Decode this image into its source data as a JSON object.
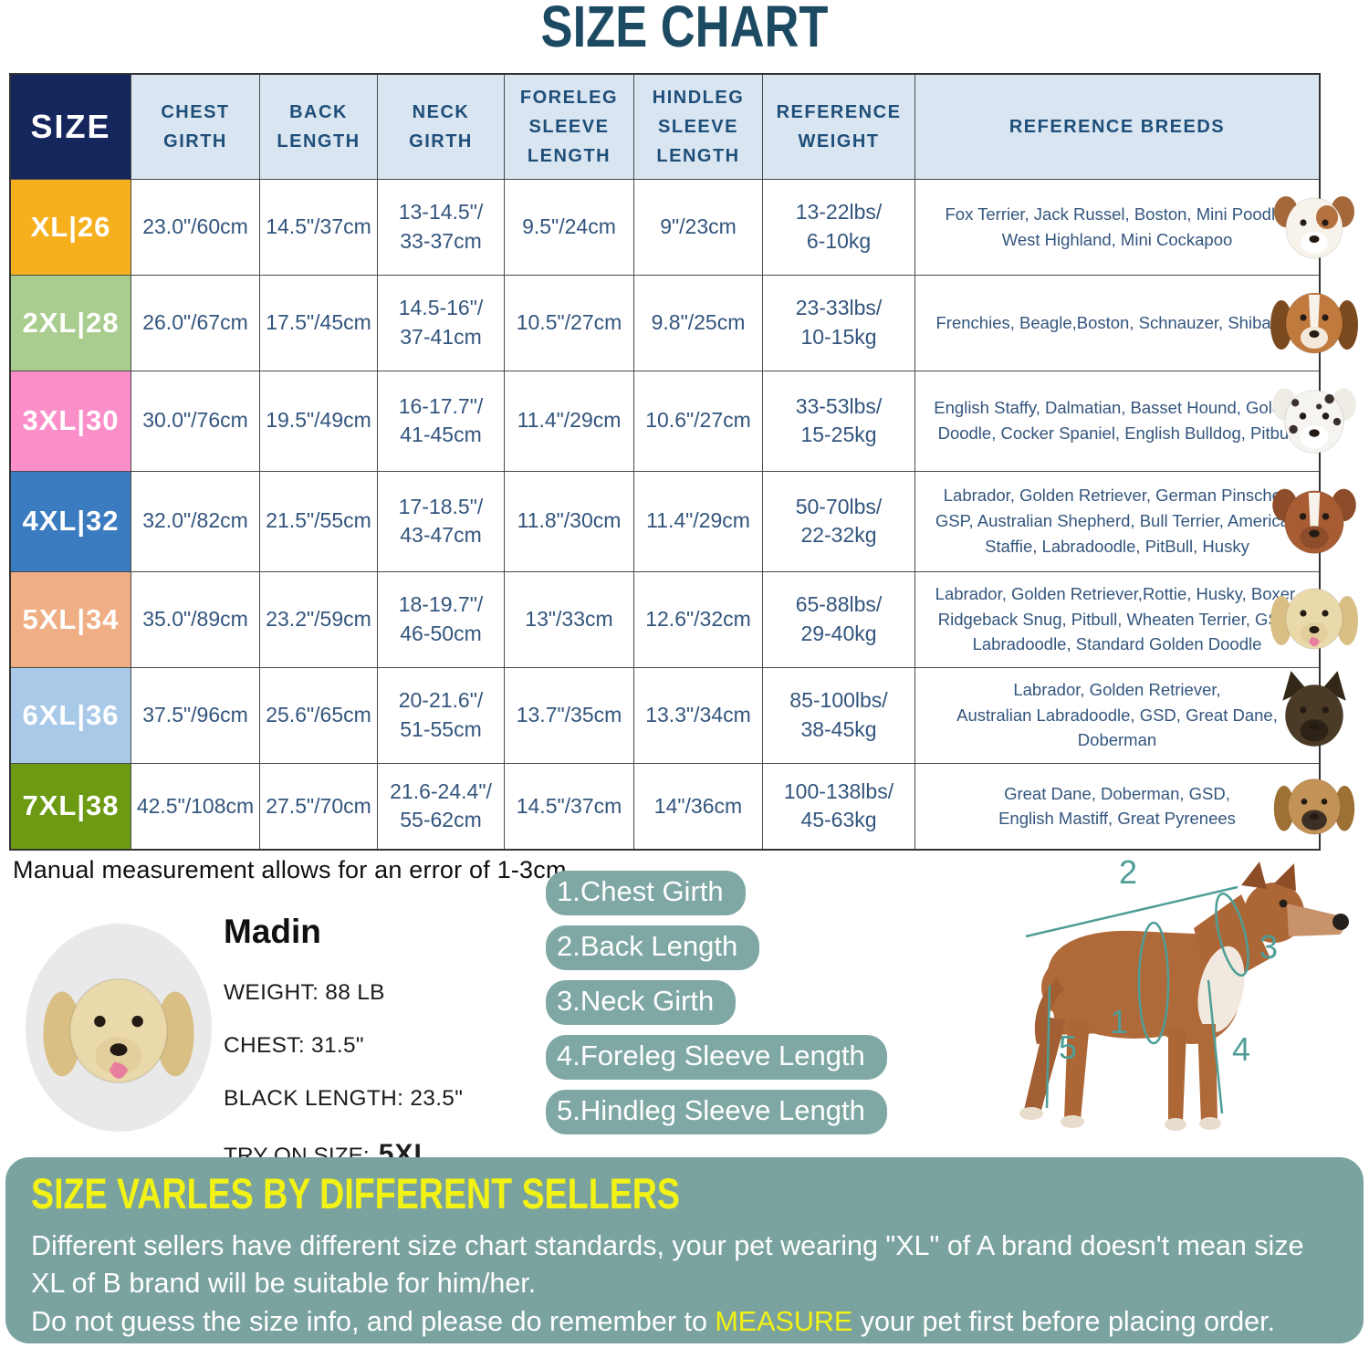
{
  "title": "SIZE CHART",
  "note": "Manual measurement allows for an error of 1-3cm",
  "table": {
    "headers": {
      "size": "SIZE",
      "chest": "CHEST GIRTH",
      "back": "BACK LENGTH",
      "neck": "NECK GIRTH",
      "foreleg": "FORELEG SLEEVE LENGTH",
      "hindleg": "HINDLEG SLEEVE LENGTH",
      "weight": "REFERENCE WEIGHT",
      "breeds": "REFERENCE BREEDS"
    },
    "rows": [
      {
        "size": "XL|26",
        "color": "#F6B01E",
        "chest": "23.0\"/60cm",
        "back": "14.5\"/37cm",
        "neck": "13-14.5\"/\n33-37cm",
        "foreleg": "9.5\"/24cm",
        "hindleg": "9\"/23cm",
        "weight": "13-22lbs/\n6-10kg",
        "breeds": "Fox Terrier, Jack Russel, Boston, Mini Poodle, West Highland, Mini Cockapoo",
        "dog": {
          "name": "jack-russell",
          "head": "#f7f2ea",
          "ear": "#a5683a",
          "earStyle": "short",
          "muzzle": "#ffffff",
          "patch": "#b5713f"
        }
      },
      {
        "size": "2XL|28",
        "color": "#A9CD8E",
        "chest": "26.0\"/67cm",
        "back": "17.5\"/45cm",
        "neck": "14.5-16\"/\n37-41cm",
        "foreleg": "10.5\"/27cm",
        "hindleg": "9.8\"/25cm",
        "weight": "23-33lbs/\n10-15kg",
        "breeds": "Frenchies, Beagle,Boston, Schnauzer, Shiba inu",
        "dog": {
          "name": "beagle",
          "head": "#c07a3e",
          "ear": "#7b4a1e",
          "earStyle": "long",
          "muzzle": "#f3e9da",
          "blaze": "#f7f2ea"
        }
      },
      {
        "size": "3XL|30",
        "color": "#FB8FC9",
        "chest": "30.0\"/76cm",
        "back": "19.5\"/49cm",
        "neck": "16-17.7\"/\n41-45cm",
        "foreleg": "11.4\"/29cm",
        "hindleg": "10.6\"/27cm",
        "weight": "33-53lbs/\n15-25kg",
        "breeds": "English Staffy, Dalmatian, Basset Hound, Golden Doodle, Cocker Spaniel, English Bulldog, Pitbull",
        "dog": {
          "name": "dalmatian",
          "head": "#f5f4f0",
          "ear": "#efece6",
          "earStyle": "short",
          "muzzle": "#ffffff",
          "spots": [
            [
              30,
              32,
              4
            ],
            [
              66,
              28,
              5
            ],
            [
              74,
              52,
              4
            ],
            [
              28,
              60,
              4.5
            ],
            [
              55,
              36,
              3
            ],
            [
              40,
              72,
              3
            ]
          ],
          "spotColor": "#3b2f2b"
        }
      },
      {
        "size": "4XL|32",
        "color": "#3B7BC0",
        "chest": "32.0\"/82cm",
        "back": "21.5\"/55cm",
        "neck": "17-18.5\"/\n43-47cm",
        "foreleg": "11.8\"/30cm",
        "hindleg": "11.4\"/29cm",
        "weight": "50-70lbs/\n22-32kg",
        "breeds": "Labrador, Golden Retriever, German Pinscher, GSP, Australian Shepherd, Bull Terrier, American Staffie, Labradoodle, PitBull, Husky",
        "dog": {
          "name": "amstaff",
          "head": "#a75c33",
          "ear": "#8d4d2a",
          "earStyle": "short",
          "muzzle": "#8d4d2a",
          "blaze": "#f7f2ea"
        }
      },
      {
        "size": "5XL|34",
        "color": "#F0AE84",
        "chest": "35.0\"/89cm",
        "back": "23.2\"/59cm",
        "neck": "18-19.7\"/\n46-50cm",
        "foreleg": "13\"/33cm",
        "hindleg": "12.6\"/32cm",
        "weight": "65-88lbs/\n29-40kg",
        "breeds": "Labrador, Golden Retriever,Rottie, Husky, Boxer, Ridgeback Snug, Pitbull, Wheaten Terrier, GSD, Labradoodle,  Standard Golden Doodle",
        "dog": {
          "name": "labrador",
          "head": "#ead9ab",
          "ear": "#d9bf84",
          "earStyle": "long",
          "muzzle": "#e2cf9c",
          "tongue": true
        }
      },
      {
        "size": "6XL|36",
        "color": "#A9C9E9",
        "chest": "37.5\"/96cm",
        "back": "25.6\"/65cm",
        "neck": "20-21.6\"/\n51-55cm",
        "foreleg": "13.7\"/35cm",
        "hindleg": "13.3\"/34cm",
        "weight": "85-100lbs/\n38-45kg",
        "breeds": "Labrador, Golden Retriever,\nAustralian Labradoodle, GSD, Great Dane,\nDoberman",
        "dog": {
          "name": "german-shepherd",
          "head": "#4b3a26",
          "ear": "#332817",
          "earStyle": "pointed",
          "muzzle": "#2c2216"
        }
      },
      {
        "size": "7XL|38",
        "color": "#6C9B13",
        "chest": "42.5\"/108cm",
        "back": "27.5\"/70cm",
        "neck": "21.6-24.4\"/\n55-62cm",
        "foreleg": "14.5\"/37cm",
        "hindleg": "14\"/36cm",
        "weight": "100-138lbs/\n45-63kg",
        "breeds": "Great Dane, Doberman, GSD,\nEnglish Mastiff, Great Pyrenees",
        "dog": {
          "name": "great-dane",
          "head": "#c29256",
          "ear": "#9d7034",
          "earStyle": "long",
          "muzzle": "#3c2f23"
        }
      }
    ]
  },
  "model": {
    "name": "Madin",
    "weight": "WEIGHT: 88 LB",
    "chest": "CHEST: 31.5\"",
    "back_length": "BLACK LENGTH: 23.5\"",
    "try_on_label": "TRY ON SIZE:",
    "try_on_size": "5XL",
    "dog": {
      "name": "labrador",
      "head": "#ead9ab",
      "ear": "#d9bf84",
      "earStyle": "long",
      "muzzle": "#e2cf9c",
      "tongue": true
    }
  },
  "measure_steps": [
    "1.Chest Girth",
    "2.Back Length",
    "3.Neck Girth",
    "4.Foreleg Sleeve Length",
    "5.Hindleg Sleeve Length"
  ],
  "diagram": {
    "n1": "1",
    "n2": "2",
    "n3": "3",
    "n4": "4",
    "n5": "5"
  },
  "footer": {
    "heading": "SIZE VARLES BY DIFFERENT SELLERS",
    "para1": "Different sellers have different size chart standards, your pet wearing \"XL\" of A brand doesn't mean size\n XL of B brand will be suitable for him/her.",
    "para2_before": "Do not guess the size info, and please do remember to ",
    "para2_highlight": "MEASURE",
    "para2_after": " your pet first before placing order."
  },
  "colors": {
    "title": "#1d4a63",
    "header_bg": "#d9e6f2",
    "header_text": "#1f4e79",
    "size_header_bg": "#15265d",
    "cell_text": "#33557d",
    "pill": "#7fa8a4",
    "footer_bg": "#7aa39f",
    "highlight_yellow": "#f2f215"
  }
}
